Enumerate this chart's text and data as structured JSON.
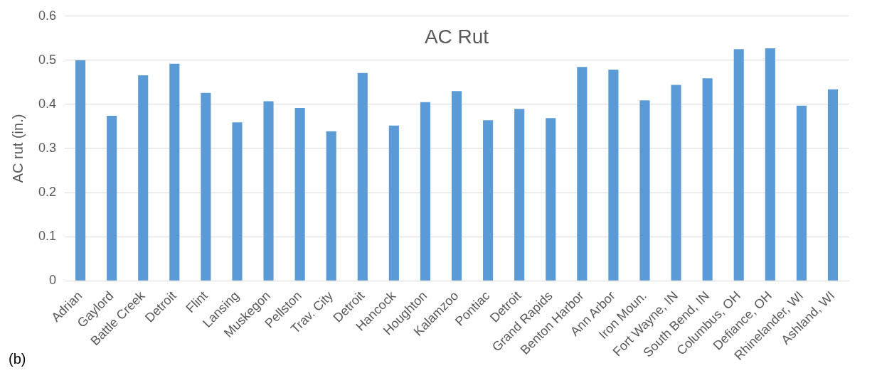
{
  "chart_data": {
    "type": "bar",
    "title": "AC Rut",
    "ylabel": "AC rut (in.)",
    "categories": [
      "Adrian",
      "Gaylord",
      "Battle Creek",
      "Detroit",
      "Flint",
      "Lansing",
      "Muskegon",
      "Pellston",
      "Trav. City",
      "Detroit",
      "Hancock",
      "Houghton",
      "Kalamzoo",
      "Pontiac",
      "Detroit",
      "Grand Rapids",
      "Benton Harbor",
      "Ann Arbor",
      "Iron Moun.",
      "Fort Wayne, IN",
      "South Bend, IN",
      "Columbus, OH",
      "Defiance, OH",
      "Rhinelander, WI",
      "Ashland, WI"
    ],
    "values": [
      0.5,
      0.374,
      0.466,
      0.492,
      0.426,
      0.359,
      0.407,
      0.392,
      0.339,
      0.471,
      0.352,
      0.405,
      0.43,
      0.364,
      0.39,
      0.369,
      0.485,
      0.479,
      0.409,
      0.444,
      0.459,
      0.525,
      0.527,
      0.397,
      0.434
    ],
    "color": "#5b9bd5",
    "ylim": [
      0,
      0.6
    ],
    "yticks": [
      0,
      0.1,
      0.2,
      0.3,
      0.4,
      0.5,
      0.6
    ],
    "grid": "y",
    "legend": false,
    "annotations": [
      "(b)"
    ]
  }
}
